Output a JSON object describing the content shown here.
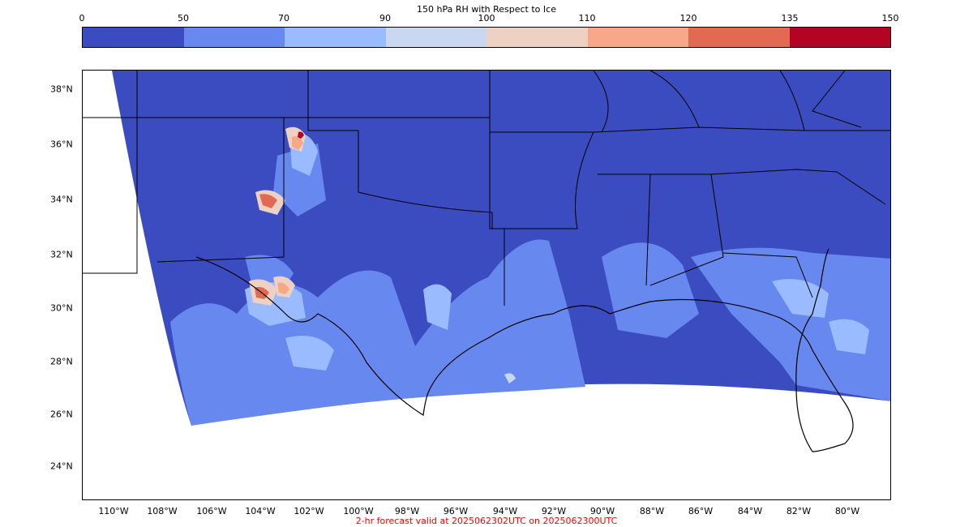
{
  "colorbar": {
    "title": "150 hPa RH with Respect to Ice",
    "ticks": [
      "0",
      "50",
      "70",
      "90",
      "100",
      "110",
      "120",
      "135",
      "150"
    ],
    "colors": [
      "#3b4cc0",
      "#6788ee",
      "#9abbff",
      "#c9d7f0",
      "#edd1c2",
      "#f7a889",
      "#e26952",
      "#b40426"
    ]
  },
  "map": {
    "ocean_color": "#3b4cc0",
    "latitude_labels": [
      "38°N",
      "36°N",
      "34°N",
      "32°N",
      "30°N",
      "28°N",
      "26°N",
      "24°N"
    ],
    "longitude_labels": [
      "110°W",
      "108°W",
      "106°W",
      "104°W",
      "102°W",
      "100°W",
      "98°W",
      "96°W",
      "94°W",
      "92°W",
      "90°W",
      "88°W",
      "86°W",
      "84°W",
      "82°W",
      "80°W"
    ]
  },
  "footer": {
    "text": "2-hr forecast valid at 2025062302UTC on 2025062300UTC",
    "color": "#ff0000"
  }
}
